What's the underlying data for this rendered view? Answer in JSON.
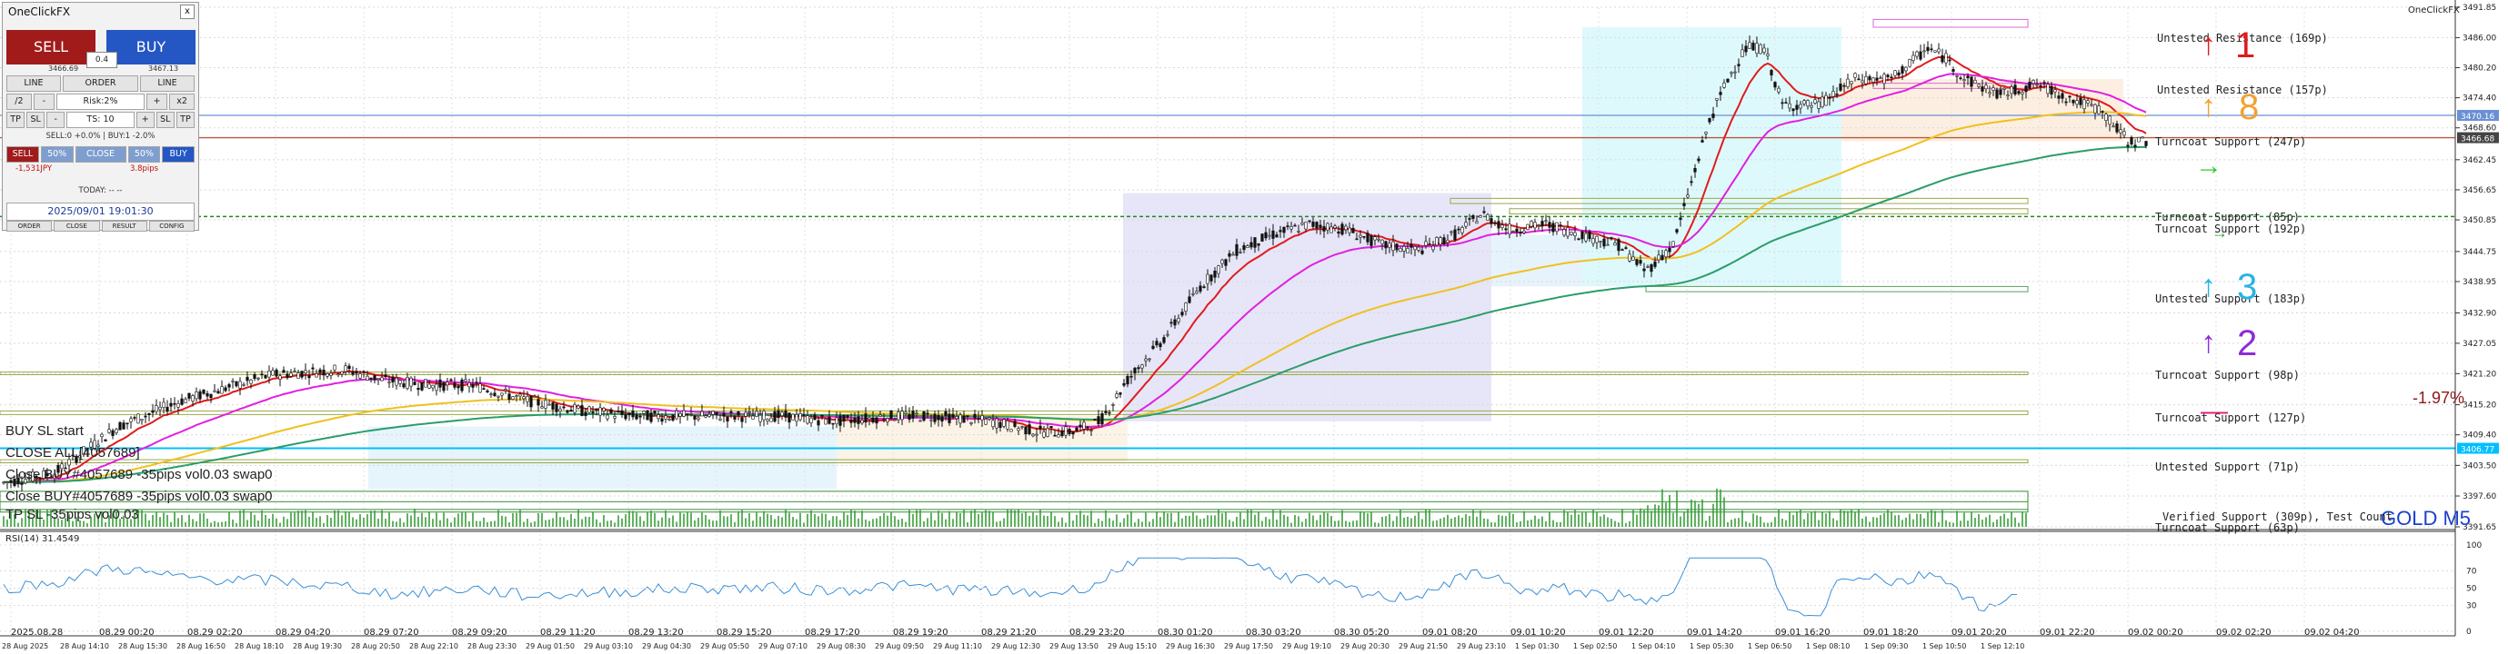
{
  "window": {
    "brand": "OneClickFX",
    "instrument": "GOLD M5",
    "rsi_label": "RSI(14) 31.4549",
    "pct_change": "-1.97%"
  },
  "panel": {
    "title": "OneClickFX",
    "close_x": "x",
    "sell_label": "SELL",
    "buy_label": "BUY",
    "sell_price": "3466.69",
    "buy_price": "3467.13",
    "lot": "0.4",
    "row1": [
      "LINE",
      "ORDER",
      "LINE"
    ],
    "row2": [
      "/2",
      "-",
      "Risk:2%",
      "+",
      "x2"
    ],
    "row3": [
      "TP",
      "SL",
      "-",
      "TS: 10",
      "+",
      "SL",
      "TP"
    ],
    "sellbuy_info": "SELL:0 +0.0% | BUY:1 -2.0%",
    "row4": [
      "SELL",
      "50%",
      "CLOSE",
      "50%",
      "BUY"
    ],
    "pl": "-1,531JPY",
    "pips": "3.8pips",
    "today": "TODAY: -- --",
    "datetime": "2025/09/01  19:01:30",
    "bottom_tabs": [
      "ORDER",
      "CLOSE",
      "RESULT",
      "CONFIG"
    ]
  },
  "overlay_log": [
    "BUY SL start",
    "CLOSE ALL[4057689]",
    "Close BUY#4057689 -35pips vol0.03 swap0",
    "Close BUY#4057689 -35pips vol0.03 swap0",
    "   TP SL  -35pips vol0.03"
  ],
  "sr_labels": [
    {
      "text": "Untested Resistance (169p)"
    },
    {
      "text": "Untested Resistance (157p)"
    },
    {
      "text": "Turncoat Support (247p)"
    },
    {
      "text": "Turncoat Support (85p)"
    },
    {
      "text": "Turncoat Support (192p)"
    },
    {
      "text": "Untested Support (183p)"
    },
    {
      "text": "Turncoat Support (98p)"
    },
    {
      "text": "Turncoat Support (127p)"
    },
    {
      "text": "Untested Support (71p)"
    },
    {
      "text": "Verified Support (309p), Test Count"
    },
    {
      "text": "Turncoat Support (63p)"
    }
  ],
  "strength_marks": [
    {
      "arrow": "↑",
      "num": "1",
      "color": "#e01b1b"
    },
    {
      "arrow": "↑",
      "num": "8",
      "color": "#f2a132"
    },
    {
      "arrow": "→",
      "num": "",
      "color": "#2ecc2e"
    },
    {
      "arrow": "→",
      "num": "",
      "color": "#2e9e2e"
    },
    {
      "arrow": "↑",
      "num": "3",
      "color": "#27b3e6"
    },
    {
      "arrow": "↑",
      "num": "2",
      "color": "#8e2bd9"
    },
    {
      "arrow": "—",
      "num": "",
      "color": "#e0207a"
    }
  ],
  "chart_data": {
    "type": "candlestick",
    "symbol": "GOLD",
    "timeframe": "M5",
    "ylim": [
      3391.65,
      3491.85
    ],
    "price_ticks": [
      "3491.85",
      "3486.00",
      "3480.20",
      "3474.40",
      "3468.60",
      "3462.45",
      "3456.65",
      "3450.85",
      "3444.75",
      "3438.95",
      "3432.90",
      "3427.05",
      "3421.20",
      "3415.20",
      "3409.40",
      "3403.50",
      "3397.60",
      "3391.65"
    ],
    "current_price_labels": [
      "3470.16",
      "3466.68"
    ],
    "blue_line_label": "3406.77",
    "rsi_ticks": [
      "100",
      "70",
      "50",
      "30",
      "0"
    ],
    "date_ticks_top": [
      "2025.08.28",
      "08.29 00:20",
      "08.29 02:20",
      "08.29 04:20",
      "08.29 07:20",
      "08.29 09:20",
      "08.29 11:20",
      "08.29 13:20",
      "08.29 15:20",
      "08.29 17:20",
      "08.29 19:20",
      "08.29 21:20",
      "08.29 23:20",
      "08.30 01:20",
      "08.30 03:20",
      "08.30 05:20",
      "09.01 08:20",
      "09.01 10:20",
      "09.01 12:20",
      "09.01 14:20",
      "09.01 16:20",
      "09.01 18:20",
      "09.01 20:20",
      "09.01 22:20",
      "09.02 00:20",
      "09.02 02:20",
      "09.02 04:20"
    ],
    "date_ticks_bottom": [
      "28 Aug 2025",
      "28 Aug 14:10",
      "28 Aug 15:30",
      "28 Aug 16:50",
      "28 Aug 18:10",
      "28 Aug 19:30",
      "28 Aug 20:50",
      "28 Aug 22:10",
      "28 Aug 23:30",
      "29 Aug 01:50",
      "29 Aug 03:10",
      "29 Aug 04:30",
      "29 Aug 05:50",
      "29 Aug 07:10",
      "29 Aug 08:30",
      "29 Aug 09:50",
      "29 Aug 11:10",
      "29 Aug 12:30",
      "29 Aug 13:50",
      "29 Aug 15:10",
      "29 Aug 16:30",
      "29 Aug 17:50",
      "29 Aug 19:10",
      "29 Aug 20:30",
      "29 Aug 21:50",
      "29 Aug 23:10",
      "1 Sep 01:30",
      "1 Sep 02:50",
      "1 Sep 04:10",
      "1 Sep 05:30",
      "1 Sep 06:50",
      "1 Sep 08:10",
      "1 Sep 09:30",
      "1 Sep 10:50",
      "1 Sep 12:10"
    ],
    "price_path": [
      [
        0,
        3400
      ],
      [
        60,
        3402
      ],
      [
        130,
        3411
      ],
      [
        200,
        3416
      ],
      [
        260,
        3419
      ],
      [
        300,
        3421
      ],
      [
        380,
        3422
      ],
      [
        420,
        3420
      ],
      [
        470,
        3419
      ],
      [
        520,
        3419
      ],
      [
        580,
        3416
      ],
      [
        640,
        3414
      ],
      [
        700,
        3413
      ],
      [
        760,
        3413
      ],
      [
        800,
        3413
      ],
      [
        860,
        3413
      ],
      [
        920,
        3412
      ],
      [
        980,
        3413
      ],
      [
        1030,
        3413
      ],
      [
        1090,
        3412
      ],
      [
        1140,
        3410
      ],
      [
        1180,
        3410
      ],
      [
        1210,
        3412
      ],
      [
        1240,
        3420
      ],
      [
        1280,
        3428
      ],
      [
        1320,
        3438
      ],
      [
        1360,
        3445
      ],
      [
        1400,
        3448
      ],
      [
        1440,
        3450
      ],
      [
        1480,
        3449
      ],
      [
        1520,
        3446
      ],
      [
        1560,
        3445
      ],
      [
        1600,
        3448
      ],
      [
        1630,
        3452
      ],
      [
        1660,
        3449
      ],
      [
        1700,
        3450
      ],
      [
        1740,
        3448
      ],
      [
        1780,
        3446
      ],
      [
        1810,
        3441
      ],
      [
        1840,
        3446
      ],
      [
        1880,
        3470
      ],
      [
        1900,
        3478
      ],
      [
        1920,
        3484
      ],
      [
        1940,
        3484
      ],
      [
        1960,
        3473
      ],
      [
        2000,
        3473
      ],
      [
        2040,
        3478
      ],
      [
        2080,
        3478
      ],
      [
        2120,
        3484
      ],
      [
        2140,
        3482
      ],
      [
        2160,
        3478
      ],
      [
        2200,
        3475
      ],
      [
        2240,
        3477
      ],
      [
        2280,
        3474
      ],
      [
        2310,
        3472
      ],
      [
        2340,
        3466
      ],
      [
        2363,
        3466
      ]
    ]
  }
}
